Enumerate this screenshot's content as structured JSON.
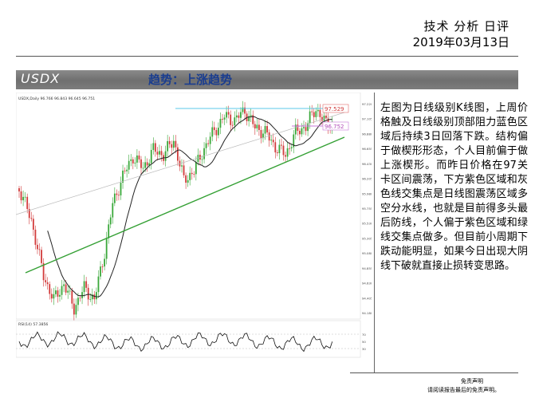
{
  "header": {
    "title": "技术 分析 日评",
    "date": "2019年03月13日"
  },
  "banner": {
    "symbol": "USDX",
    "trend": "趋势：上涨趋势"
  },
  "chart": {
    "legend": "USDX,Daily 96.766 96.843 96.645 96.751",
    "osc_label": "RSI(14) 57.3856",
    "levels": {
      "resistance": "97.529",
      "current": "96.752"
    },
    "price_ticks": [
      "97.220",
      "97.105",
      "96.880",
      "96.655",
      "96.430",
      "96.205",
      "95.980",
      "95.755",
      "95.530",
      "95.305",
      "95.080",
      "94.855",
      "94.630",
      "94.405",
      "94.180"
    ],
    "osc_ticks": [
      "70",
      "50",
      "30"
    ],
    "colors": {
      "resistance": "#5bc8e8",
      "support_purple": "#c878d8",
      "support_green": "#34a034",
      "ma": "#222222"
    }
  },
  "analysis": "左图为日线级别K线图，上周价格触及日线级别顶部阻力蓝色区域后持续3日回落下跌。结构偏于做楔形形态，个人目前偏于做上涨楔形。而昨日价格在97关卡区间震荡，下方紫色区域和灰色线交集点是日线图震荡区域多空分水线，也就是目前得多头最后防线，个人偏于紫色区域和绿线交集点做多。但目前小周期下跌动能明显，如果今日出现大阴线下破就直接止损转变思路。",
  "footer": {
    "line1": "免责声明",
    "line2": "请阅读报告最后的免责声明。"
  }
}
